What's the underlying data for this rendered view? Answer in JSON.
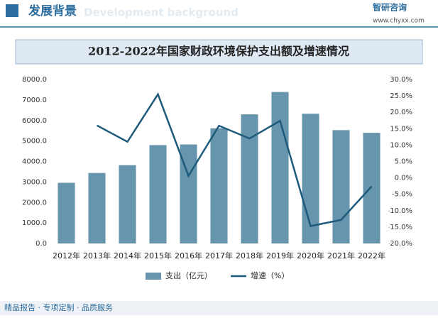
{
  "header": {
    "title": "发展背景",
    "subtitle": "Development background",
    "brand": "智研咨询",
    "url": "www.chyxx.com"
  },
  "footer": {
    "slogan": "精品报告 · 专项定制 · 品质服务"
  },
  "chart_data": {
    "type": "bar-line",
    "title": "2012-2022年国家财政环境保护支出额及增速情况",
    "categories": [
      "2012年",
      "2013年",
      "2014年",
      "2015年",
      "2016年",
      "2017年",
      "2018年",
      "2019年",
      "2020年",
      "2021年",
      "2022年"
    ],
    "series": [
      {
        "name": "支出（亿元）",
        "type": "bar",
        "color": "#6795ad",
        "values": [
          2960,
          3440,
          3820,
          4800,
          4830,
          5620,
          6300,
          7390,
          6330,
          5530,
          5400
        ]
      },
      {
        "name": "增速（%）",
        "type": "line",
        "axis": "y2",
        "color": "#1d5a7c",
        "values": [
          null,
          16.0,
          11.0,
          25.5,
          0.6,
          15.9,
          12.0,
          17.4,
          -14.7,
          -12.8,
          -2.6
        ]
      }
    ],
    "ylim": [
      0,
      8000
    ],
    "yticks": [
      {
        "value": 0,
        "label": "0.0"
      },
      {
        "value": 1000,
        "label": "1000.0"
      },
      {
        "value": 2000,
        "label": "2000.0"
      },
      {
        "value": 3000,
        "label": "3000.0"
      },
      {
        "value": 4000,
        "label": "4000.0"
      },
      {
        "value": 5000,
        "label": "5000.0"
      },
      {
        "value": 6000,
        "label": "6000.0"
      },
      {
        "value": 7000,
        "label": "7000.0"
      },
      {
        "value": 8000,
        "label": "8000.0"
      }
    ],
    "y2lim": [
      -20,
      30
    ],
    "y2ticks": [
      {
        "value": -20,
        "label": "-20.0%"
      },
      {
        "value": -15,
        "label": "-15.0%"
      },
      {
        "value": -10,
        "label": "-10.0%"
      },
      {
        "value": -5,
        "label": "-5.0%"
      },
      {
        "value": 0,
        "label": "0.0%"
      },
      {
        "value": 5,
        "label": "5.0%"
      },
      {
        "value": 10,
        "label": "10.0%"
      },
      {
        "value": 15,
        "label": "15.0%"
      },
      {
        "value": 20,
        "label": "20.0%"
      },
      {
        "value": 25,
        "label": "25.0%"
      },
      {
        "value": 30,
        "label": "30.0%"
      }
    ],
    "legend": "bottom"
  }
}
